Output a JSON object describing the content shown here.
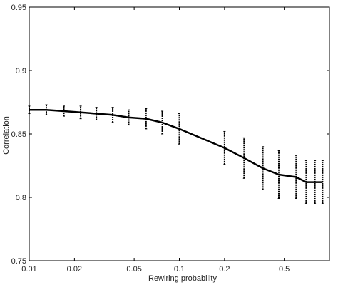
{
  "chart_data": {
    "type": "line",
    "title": "",
    "xlabel": "Rewiring probability",
    "ylabel": "Correlation",
    "xscale": "log",
    "xlim": [
      0.01,
      1
    ],
    "ylim": [
      0.75,
      0.95
    ],
    "grid": false,
    "legend": "none",
    "line_color": "#000000",
    "x_ticks": [
      {
        "value": 0.01,
        "label": "0.01"
      },
      {
        "value": 0.02,
        "label": "0.02"
      },
      {
        "value": 0.05,
        "label": "0.05"
      },
      {
        "value": 0.1,
        "label": "0.1"
      },
      {
        "value": 0.2,
        "label": "0.2"
      },
      {
        "value": 0.5,
        "label": "0.5"
      }
    ],
    "y_ticks": [
      {
        "value": 0.75,
        "label": "0.75"
      },
      {
        "value": 0.8,
        "label": "0.8"
      },
      {
        "value": 0.85,
        "label": "0.85"
      },
      {
        "value": 0.9,
        "label": "0.9"
      },
      {
        "value": 0.95,
        "label": "0.95"
      }
    ],
    "series": [
      {
        "x": [
          0.01,
          0.013,
          0.017,
          0.022,
          0.028,
          0.036,
          0.046,
          0.06,
          0.077,
          0.1,
          0.2,
          0.27,
          0.36,
          0.46,
          0.6,
          0.7,
          0.8,
          0.9
        ],
        "y": [
          0.869,
          0.869,
          0.868,
          0.867,
          0.866,
          0.865,
          0.863,
          0.862,
          0.859,
          0.854,
          0.839,
          0.831,
          0.823,
          0.818,
          0.816,
          0.812,
          0.812,
          0.812
        ],
        "error": [
          0.003,
          0.004,
          0.004,
          0.005,
          0.005,
          0.006,
          0.006,
          0.008,
          0.009,
          0.012,
          0.013,
          0.016,
          0.017,
          0.019,
          0.017,
          0.017,
          0.017,
          0.017
        ]
      }
    ]
  }
}
